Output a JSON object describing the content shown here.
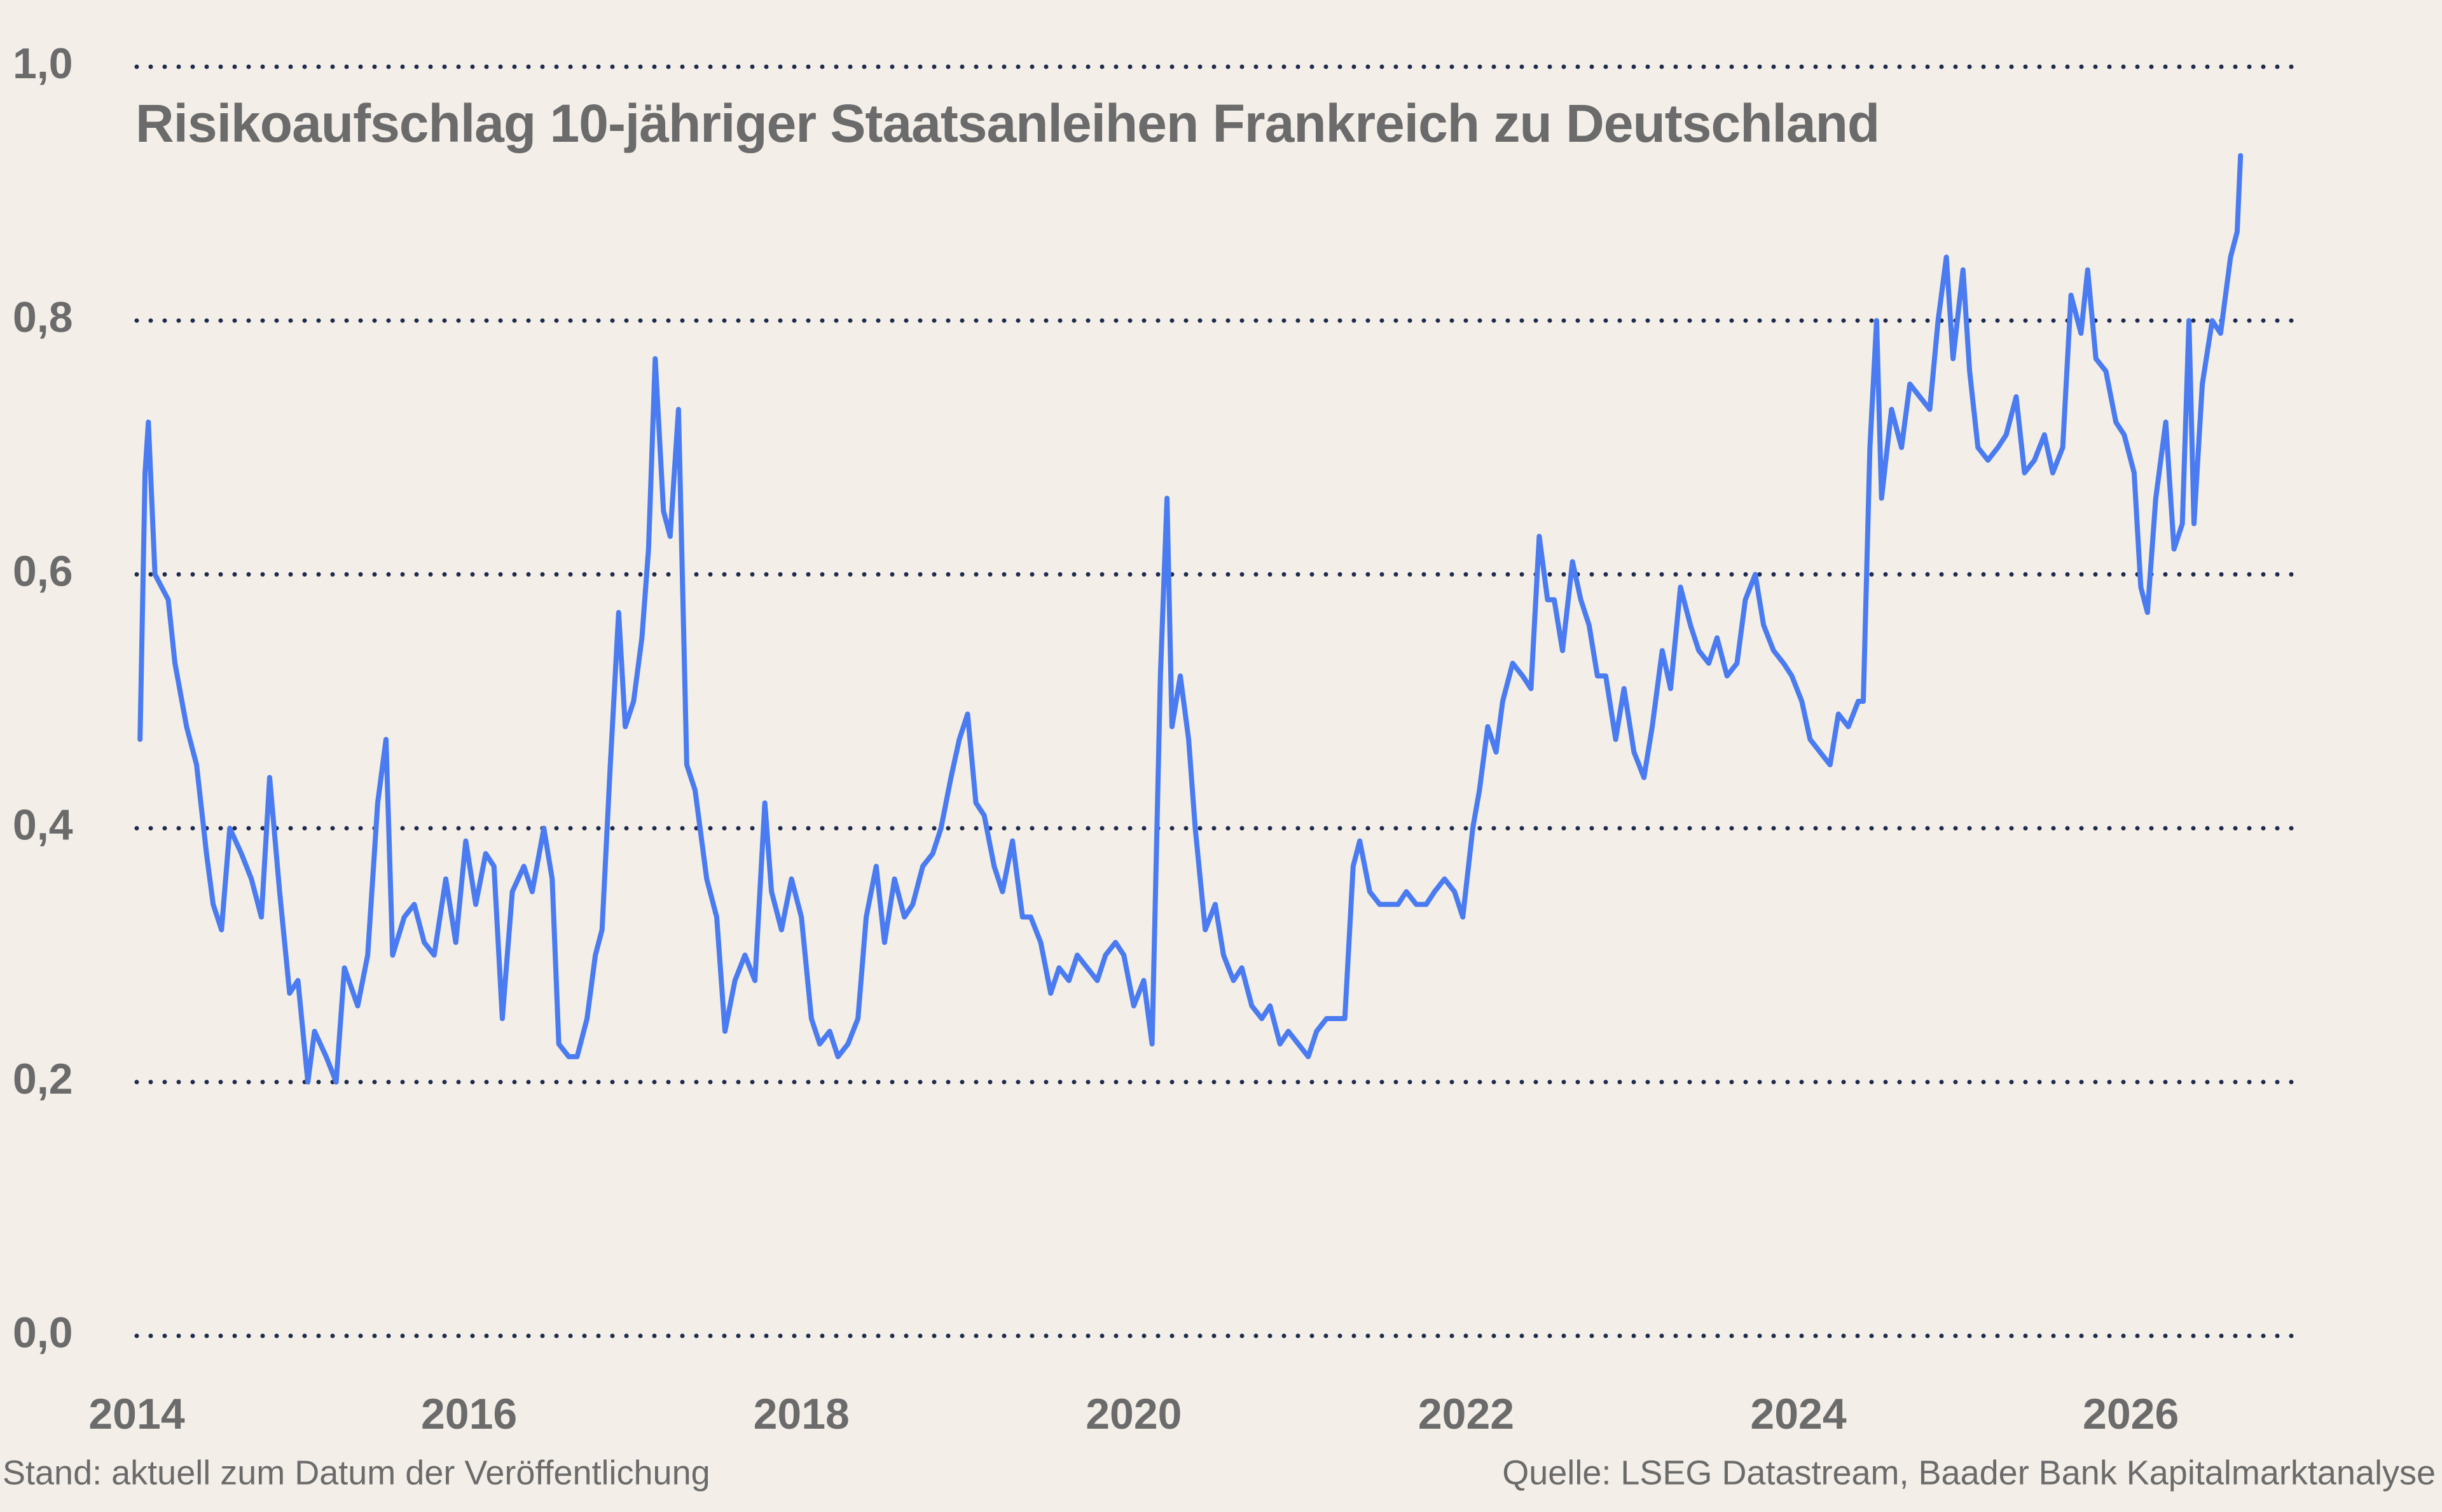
{
  "chart_data": {
    "type": "line",
    "title": "Risikoaufschlag 10-jähriger Staatsanleihen Frankreich zu Deutschland",
    "note": "Stand: aktuell zum Datum der Veröffentlichung",
    "source": "Quelle: LSEG Datastream, Baader Bank Kapitalmarktanalyse",
    "color": "#4a7bf0",
    "grid": true,
    "xlim": [
      2014,
      2027
    ],
    "xticks": [
      2014,
      2016,
      2018,
      2020,
      2022,
      2024,
      2026
    ],
    "ylim": [
      0,
      1.0
    ],
    "yticks": [
      {
        "value": 0,
        "label": "0,0"
      },
      {
        "value": 0.2,
        "label": "0,2"
      },
      {
        "value": 0.4,
        "label": "0,4"
      },
      {
        "value": 0.6,
        "label": "0,6"
      },
      {
        "value": 0.8,
        "label": "0,8"
      },
      {
        "value": 1.0,
        "label": "1,0"
      }
    ],
    "x": [
      2014.02,
      2014.05,
      2014.07,
      2014.11,
      2014.19,
      2014.23,
      2014.3,
      2014.36,
      2014.42,
      2014.46,
      2014.51,
      2014.56,
      2014.63,
      2014.69,
      2014.75,
      2014.8,
      2014.86,
      2014.92,
      2014.97,
      2015.03,
      2015.07,
      2015.14,
      2015.2,
      2015.25,
      2015.33,
      2015.39,
      2015.45,
      2015.5,
      2015.54,
      2015.61,
      2015.67,
      2015.73,
      2015.79,
      2015.86,
      2015.92,
      2015.98,
      2016.04,
      2016.1,
      2016.15,
      2016.2,
      2016.26,
      2016.33,
      2016.38,
      2016.45,
      2016.5,
      2016.54,
      2016.6,
      2016.65,
      2016.71,
      2016.76,
      2016.8,
      2016.85,
      2016.9,
      2016.94,
      2016.99,
      2017.04,
      2017.08,
      2017.12,
      2017.17,
      2017.21,
      2017.26,
      2017.31,
      2017.36,
      2017.43,
      2017.49,
      2017.54,
      2017.6,
      2017.66,
      2017.72,
      2017.78,
      2017.82,
      2017.88,
      2017.94,
      2018.0,
      2018.06,
      2018.11,
      2018.17,
      2018.22,
      2018.28,
      2018.34,
      2018.39,
      2018.45,
      2018.5,
      2018.56,
      2018.62,
      2018.67,
      2018.73,
      2018.79,
      2018.84,
      2018.9,
      2018.95,
      2019.0,
      2019.05,
      2019.1,
      2019.16,
      2019.21,
      2019.27,
      2019.33,
      2019.38,
      2019.44,
      2019.5,
      2019.55,
      2019.61,
      2019.66,
      2019.72,
      2019.78,
      2019.83,
      2019.89,
      2019.94,
      2020.0,
      2020.06,
      2020.11,
      2020.16,
      2020.2,
      2020.23,
      2020.28,
      2020.33,
      2020.37,
      2020.43,
      2020.49,
      2020.54,
      2020.6,
      2020.65,
      2020.71,
      2020.77,
      2020.82,
      2020.88,
      2020.93,
      2020.99,
      2021.05,
      2021.1,
      2021.16,
      2021.21,
      2021.27,
      2021.32,
      2021.36,
      2021.42,
      2021.48,
      2021.53,
      2021.59,
      2021.64,
      2021.7,
      2021.76,
      2021.81,
      2021.87,
      2021.93,
      2021.98,
      2022.04,
      2022.08,
      2022.13,
      2022.18,
      2022.22,
      2022.28,
      2022.34,
      2022.39,
      2022.44,
      2022.49,
      2022.53,
      2022.58,
      2022.64,
      2022.69,
      2022.74,
      2022.79,
      2022.84,
      2022.9,
      2022.95,
      2023.01,
      2023.07,
      2023.12,
      2023.18,
      2023.23,
      2023.29,
      2023.35,
      2023.4,
      2023.46,
      2023.51,
      2023.57,
      2023.63,
      2023.68,
      2023.74,
      2023.79,
      2023.85,
      2023.91,
      2023.96,
      2024.02,
      2024.07,
      2024.13,
      2024.19,
      2024.24,
      2024.3,
      2024.36,
      2024.39,
      2024.43,
      2024.47,
      2024.5,
      2024.56,
      2024.62,
      2024.67,
      2024.73,
      2024.79,
      2024.84,
      2024.89,
      2024.93,
      2024.99,
      2025.03,
      2025.08,
      2025.14,
      2025.2,
      2025.25,
      2025.31,
      2025.36,
      2025.42,
      2025.48,
      2025.53,
      2025.59,
      2025.64,
      2025.7,
      2025.74,
      2025.79,
      2025.85,
      2025.91,
      2025.96,
      2026.02,
      2026.06,
      2026.1,
      2026.15,
      2026.21,
      2026.26,
      2026.31,
      2026.35,
      2026.38,
      2026.43,
      2026.49,
      2026.54,
      2026.6,
      2026.64,
      2026.66
    ],
    "values": [
      0.47,
      0.68,
      0.72,
      0.6,
      0.58,
      0.53,
      0.48,
      0.45,
      0.38,
      0.34,
      0.32,
      0.4,
      0.38,
      0.36,
      0.33,
      0.44,
      0.35,
      0.27,
      0.28,
      0.2,
      0.24,
      0.22,
      0.2,
      0.29,
      0.26,
      0.3,
      0.42,
      0.47,
      0.3,
      0.33,
      0.34,
      0.31,
      0.3,
      0.36,
      0.31,
      0.39,
      0.34,
      0.38,
      0.37,
      0.25,
      0.35,
      0.37,
      0.35,
      0.4,
      0.36,
      0.23,
      0.22,
      0.22,
      0.25,
      0.3,
      0.32,
      0.45,
      0.57,
      0.48,
      0.5,
      0.55,
      0.62,
      0.77,
      0.65,
      0.63,
      0.73,
      0.45,
      0.43,
      0.36,
      0.33,
      0.24,
      0.28,
      0.3,
      0.28,
      0.42,
      0.35,
      0.32,
      0.36,
      0.33,
      0.25,
      0.23,
      0.24,
      0.22,
      0.23,
      0.25,
      0.33,
      0.37,
      0.31,
      0.36,
      0.33,
      0.34,
      0.37,
      0.38,
      0.4,
      0.44,
      0.47,
      0.49,
      0.42,
      0.41,
      0.37,
      0.35,
      0.39,
      0.33,
      0.33,
      0.31,
      0.27,
      0.29,
      0.28,
      0.3,
      0.29,
      0.28,
      0.3,
      0.31,
      0.3,
      0.26,
      0.28,
      0.23,
      0.52,
      0.66,
      0.48,
      0.52,
      0.47,
      0.4,
      0.32,
      0.34,
      0.3,
      0.28,
      0.29,
      0.26,
      0.25,
      0.26,
      0.23,
      0.24,
      0.23,
      0.22,
      0.24,
      0.25,
      0.25,
      0.25,
      0.37,
      0.39,
      0.35,
      0.34,
      0.34,
      0.34,
      0.35,
      0.34,
      0.34,
      0.35,
      0.36,
      0.35,
      0.33,
      0.4,
      0.43,
      0.48,
      0.46,
      0.5,
      0.53,
      0.52,
      0.51,
      0.63,
      0.58,
      0.58,
      0.54,
      0.61,
      0.58,
      0.56,
      0.52,
      0.52,
      0.47,
      0.51,
      0.46,
      0.44,
      0.48,
      0.54,
      0.51,
      0.59,
      0.56,
      0.54,
      0.53,
      0.55,
      0.52,
      0.53,
      0.58,
      0.6,
      0.56,
      0.54,
      0.53,
      0.52,
      0.5,
      0.47,
      0.46,
      0.45,
      0.49,
      0.48,
      0.5,
      0.5,
      0.7,
      0.8,
      0.66,
      0.73,
      0.7,
      0.75,
      0.74,
      0.73,
      0.8,
      0.85,
      0.77,
      0.84,
      0.76,
      0.7,
      0.69,
      0.7,
      0.71,
      0.74,
      0.68,
      0.69,
      0.71,
      0.68,
      0.7,
      0.82,
      0.79,
      0.84,
      0.77,
      0.76,
      0.72,
      0.71,
      0.68,
      0.59,
      0.57,
      0.66,
      0.72,
      0.62,
      0.64,
      0.8,
      0.64,
      0.75,
      0.8,
      0.79,
      0.85,
      0.87,
      0.93
    ]
  }
}
